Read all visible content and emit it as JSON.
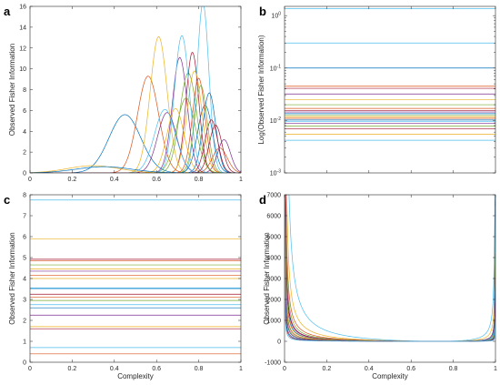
{
  "chart_data": [
    {
      "panel": "a",
      "type": "line",
      "xlabel": "",
      "ylabel": "Observed Fisher Information",
      "xlim": [
        0,
        1
      ],
      "ylim": [
        0,
        16
      ],
      "xticks": [
        "0",
        "0.2",
        "0.4",
        "0.6",
        "0.8",
        "1"
      ],
      "yticks": [
        "0",
        "2",
        "4",
        "6",
        "8",
        "10",
        "12",
        "14",
        "16"
      ],
      "grid": false,
      "series": [
        {
          "color": "#0072BD",
          "peaks": [
            [
              0.45,
              5.6,
              0.075
            ]
          ]
        },
        {
          "color": "#D95319",
          "peaks": [
            [
              0.56,
              9.3,
              0.05
            ]
          ]
        },
        {
          "color": "#EDB120",
          "peaks": [
            [
              0.61,
              13.1,
              0.04
            ]
          ]
        },
        {
          "color": "#7E2F8E",
          "peaks": [
            [
              0.71,
              11.1,
              0.035
            ]
          ]
        },
        {
          "color": "#77AC30",
          "peaks": [
            [
              0.75,
              9.6,
              0.04
            ]
          ]
        },
        {
          "color": "#4DBEEE",
          "peaks": [
            [
              0.82,
              16.3,
              0.028
            ]
          ]
        },
        {
          "color": "#A2142F",
          "peaks": [
            [
              0.77,
              11.6,
              0.03
            ]
          ]
        },
        {
          "color": "#0072BD",
          "peaks": [
            [
              0.85,
              7.7,
              0.03
            ]
          ]
        },
        {
          "color": "#D95319",
          "peaks": [
            [
              0.9,
              2.4,
              0.035
            ]
          ]
        },
        {
          "color": "#EDB120",
          "peaks": [
            [
              0.78,
              9.8,
              0.035
            ]
          ]
        },
        {
          "color": "#7E2F8E",
          "peaks": [
            [
              0.92,
              3.2,
              0.03
            ]
          ]
        },
        {
          "color": "#77AC30",
          "peaks": [
            [
              0.74,
              7.2,
              0.045
            ]
          ]
        },
        {
          "color": "#4DBEEE",
          "peaks": [
            [
              0.72,
              13.2,
              0.035
            ]
          ]
        },
        {
          "color": "#A2142F",
          "peaks": [
            [
              0.86,
              5.1,
              0.03
            ]
          ]
        },
        {
          "color": "#0072BD",
          "peaks": [
            [
              0.83,
              6.5,
              0.035
            ]
          ]
        },
        {
          "color": "#D95319",
          "peaks": [
            [
              0.8,
              9.1,
              0.03
            ]
          ]
        },
        {
          "color": "#EDB120",
          "peaks": [
            [
              0.69,
              6.2,
              0.04
            ]
          ]
        },
        {
          "color": "#7E2F8E",
          "peaks": [
            [
              0.65,
              5.8,
              0.045
            ]
          ]
        },
        {
          "color": "#77AC30",
          "peaks": [
            [
              0.81,
              8.4,
              0.03
            ]
          ]
        },
        {
          "color": "#4DBEEE",
          "peaks": [
            [
              0.64,
              6.1,
              0.05
            ]
          ]
        },
        {
          "color": "#A2142F",
          "peaks": [
            [
              0.88,
              4.6,
              0.03
            ]
          ]
        },
        {
          "color": "#EDB120",
          "peaks": [
            [
              0.3,
              0.7,
              0.12
            ]
          ]
        },
        {
          "color": "#0072BD",
          "peaks": [
            [
              0.35,
              0.6,
              0.13
            ]
          ]
        }
      ]
    },
    {
      "panel": "b",
      "type": "line",
      "xlabel": "",
      "ylabel": "Log(Observed Fisher Information)",
      "scale_y": "log",
      "xlim": [
        0,
        1
      ],
      "ylim": [
        0.001,
        1.5
      ],
      "xticks": [
        "",
        "",
        "",
        "",
        "",
        ""
      ],
      "yticks": [
        {
          "value": 0.001,
          "base": "10",
          "exp": "-3"
        },
        {
          "value": 0.01,
          "base": "10",
          "exp": "-2"
        },
        {
          "value": 0.1,
          "base": "10",
          "exp": "-1"
        },
        {
          "value": 1,
          "base": "10",
          "exp": "0"
        }
      ],
      "grid": false,
      "series": [
        {
          "color": "#4DBEEE",
          "value": 1.35
        },
        {
          "color": "#4DBEEE",
          "value": 0.3
        },
        {
          "color": "#0072BD",
          "value": 0.1
        },
        {
          "color": "#D95319",
          "value": 0.045
        },
        {
          "color": "#A2142F",
          "value": 0.041
        },
        {
          "color": "#7E2F8E",
          "value": 0.032
        },
        {
          "color": "#EDB120",
          "value": 0.025
        },
        {
          "color": "#77AC30",
          "value": 0.02
        },
        {
          "color": "#D95319",
          "value": 0.017
        },
        {
          "color": "#A2142F",
          "value": 0.0155
        },
        {
          "color": "#7E2F8E",
          "value": 0.0145
        },
        {
          "color": "#0072BD",
          "value": 0.0135
        },
        {
          "color": "#77AC30",
          "value": 0.0125
        },
        {
          "color": "#EDB120",
          "value": 0.0118
        },
        {
          "color": "#D95319",
          "value": 0.011
        },
        {
          "color": "#0072BD",
          "value": 0.0102
        },
        {
          "color": "#4DBEEE",
          "value": 0.0095
        },
        {
          "color": "#7E2F8E",
          "value": 0.0088
        },
        {
          "color": "#77AC30",
          "value": 0.0078
        },
        {
          "color": "#A2142F",
          "value": 0.007
        },
        {
          "color": "#EDB120",
          "value": 0.0055
        },
        {
          "color": "#4DBEEE",
          "value": 0.0042
        }
      ]
    },
    {
      "panel": "c",
      "type": "line",
      "xlabel": "Complexity",
      "ylabel": "Observed Fisher Information",
      "xlim": [
        0,
        1
      ],
      "ylim": [
        0,
        8
      ],
      "xticks": [
        "0",
        "0.2",
        "0.4",
        "0.6",
        "0.8",
        "1"
      ],
      "yticks": [
        "0",
        "1",
        "2",
        "3",
        "4",
        "5",
        "6",
        "7",
        "8"
      ],
      "grid": false,
      "series": [
        {
          "color": "#4DBEEE",
          "value": 7.75
        },
        {
          "color": "#EDB120",
          "value": 5.9
        },
        {
          "color": "#A2142F",
          "value": 4.92
        },
        {
          "color": "#D95319",
          "value": 4.85
        },
        {
          "color": "#77AC30",
          "value": 4.65
        },
        {
          "color": "#EDB120",
          "value": 4.45
        },
        {
          "color": "#7E2F8E",
          "value": 4.35
        },
        {
          "color": "#D95319",
          "value": 4.15
        },
        {
          "color": "#EDB120",
          "value": 4.0
        },
        {
          "color": "#4DBEEE",
          "value": 3.55
        },
        {
          "color": "#0072BD",
          "value": 3.52
        },
        {
          "color": "#A2142F",
          "value": 3.25
        },
        {
          "color": "#D95319",
          "value": 3.1
        },
        {
          "color": "#77AC30",
          "value": 2.95
        },
        {
          "color": "#4DBEEE",
          "value": 2.75
        },
        {
          "color": "#0072BD",
          "value": 2.6
        },
        {
          "color": "#7E2F8E",
          "value": 2.25
        },
        {
          "color": "#EDB120",
          "value": 1.7
        },
        {
          "color": "#A2142F",
          "value": 1.6
        },
        {
          "color": "#4DBEEE",
          "value": 0.7
        },
        {
          "color": "#D95319",
          "value": 0.4
        }
      ]
    },
    {
      "panel": "d",
      "type": "line",
      "xlabel": "Complexity",
      "ylabel": "Observed Fisher Information",
      "xlim": [
        0,
        1
      ],
      "ylim": [
        -1000,
        7000
      ],
      "xticks": [
        "0",
        "0.2",
        "0.4",
        "0.6",
        "0.8",
        "1"
      ],
      "yticks": [
        "-1000",
        "0",
        "1000",
        "2000",
        "3000",
        "4000",
        "5000",
        "6000",
        "7000"
      ],
      "grid": false,
      "series": [
        {
          "color": "#4DBEEE",
          "k": 0.3,
          "x0": 0.72
        },
        {
          "color": "#EDB120",
          "k": 0.15,
          "x0": 0.72
        },
        {
          "color": "#D95319",
          "k": 0.09,
          "x0": 0.75
        },
        {
          "color": "#77AC30",
          "k": 0.075,
          "x0": 0.73
        },
        {
          "color": "#7E2F8E",
          "k": 0.065,
          "x0": 0.71
        },
        {
          "color": "#A2142F",
          "k": 0.055,
          "x0": 0.74
        },
        {
          "color": "#0072BD",
          "k": 0.048,
          "x0": 0.72
        },
        {
          "color": "#EDB120",
          "k": 0.042,
          "x0": 0.73
        },
        {
          "color": "#4DBEEE",
          "k": 0.036,
          "x0": 0.7
        },
        {
          "color": "#D95319",
          "k": 0.031,
          "x0": 0.74
        },
        {
          "color": "#77AC30",
          "k": 0.026,
          "x0": 0.72
        },
        {
          "color": "#7E2F8E",
          "k": 0.021,
          "x0": 0.73
        },
        {
          "color": "#0072BD",
          "k": 0.016,
          "x0": 0.71
        },
        {
          "color": "#A2142F",
          "k": 0.012,
          "x0": 0.72
        },
        {
          "color": "#4DBEEE",
          "k": 0.008,
          "x0": 0.73
        }
      ]
    }
  ]
}
